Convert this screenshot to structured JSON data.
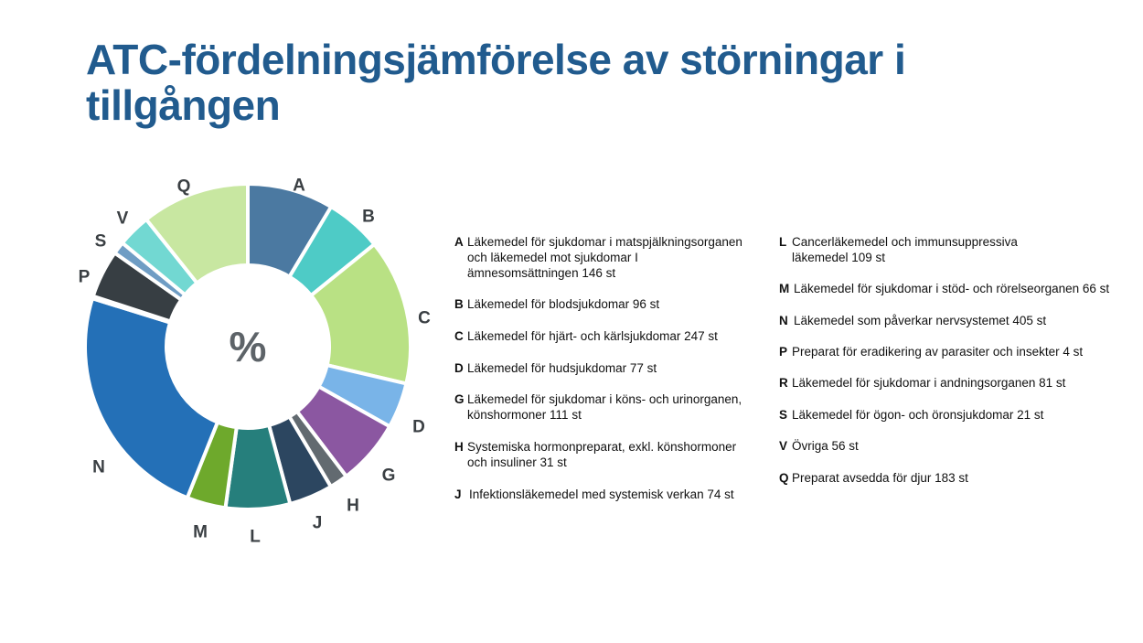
{
  "title": "ATC-fördelningsjämförelse av störningar i tillgången",
  "chart_data": {
    "type": "pie",
    "variant": "donut",
    "center_label": "%",
    "slices": [
      {
        "code": "A",
        "value": 146,
        "color": "#4b79a1",
        "desc": "Läkemedel för sjukdomar i matspjälkningsorganen\noch läkemedel mot sjukdomar I\nämnesomsättningen 146 st"
      },
      {
        "code": "B",
        "value": 96,
        "color": "#4ecbc6",
        "desc": "Läkemedel för blodsjukdomar 96 st"
      },
      {
        "code": "C",
        "value": 247,
        "color": "#b9e184",
        "desc": "Läkemedel för hjärt- och kärlsjukdomar 247 st"
      },
      {
        "code": "D",
        "value": 77,
        "color": "#79b4e8",
        "desc": "Läkemedel för hudsjukdomar 77 st"
      },
      {
        "code": "G",
        "value": 111,
        "color": "#8b57a1",
        "desc": "Läkemedel för sjukdomar i köns- och urinorganen,\nkönshormoner 111 st"
      },
      {
        "code": "H",
        "value": 31,
        "color": "#626a70",
        "desc": "Systemiska hormonpreparat, exkl. könshormoner\noch insuliner 31 st"
      },
      {
        "code": "J",
        "value": 74,
        "color": "#2c4660",
        "desc": "Infektionsläkemedel med systemisk verkan 74 st"
      },
      {
        "code": "L",
        "value": 109,
        "color": "#267f7c",
        "desc": "Cancerläkemedel och immunsuppressiva\nläkemedel 109 st"
      },
      {
        "code": "M",
        "value": 66,
        "color": "#6ea92c",
        "desc": "Läkemedel för sjukdomar i stöd- och rörelseorganen 66 st"
      },
      {
        "code": "N",
        "value": 405,
        "color": "#2470b7",
        "desc": "Läkemedel som påverkar nervsystemet 405 st"
      },
      {
        "code": "P",
        "value": 4,
        "color": "#373e43",
        "desc": "Preparat för eradikering av parasiter och insekter 4 st"
      },
      {
        "code": "R",
        "value": 81,
        "color": "#373e43",
        "desc": "Läkemedel för sjukdomar i andningsorganen 81 st"
      },
      {
        "code": "S",
        "value": 21,
        "color": "#6f9dc4",
        "desc": "Läkemedel för ögon- och öronsjukdomar 21 st"
      },
      {
        "code": "V",
        "value": 56,
        "color": "#72d8d2",
        "desc": "Övriga 56 st"
      },
      {
        "code": "Q",
        "value": 183,
        "color": "#c8e7a1",
        "desc": "Preparat avsedda för djur 183 st"
      }
    ],
    "slice_labels": [
      {
        "text": "A"
      },
      {
        "text": "B"
      },
      {
        "text": "C"
      },
      {
        "text": "D"
      },
      {
        "text": "G"
      },
      {
        "text": "H"
      },
      {
        "text": "J"
      },
      {
        "text": "L"
      },
      {
        "text": "M"
      },
      {
        "text": "N"
      },
      {
        "text": "P"
      },
      {
        "text": "S"
      },
      {
        "text": "V"
      },
      {
        "text": "Q"
      }
    ],
    "legend_left": [
      "A",
      "B",
      "C",
      "D",
      "G",
      "H",
      "J"
    ],
    "legend_right": [
      "L",
      "M",
      "N",
      "P",
      "R",
      "S",
      "V",
      "Q"
    ]
  }
}
